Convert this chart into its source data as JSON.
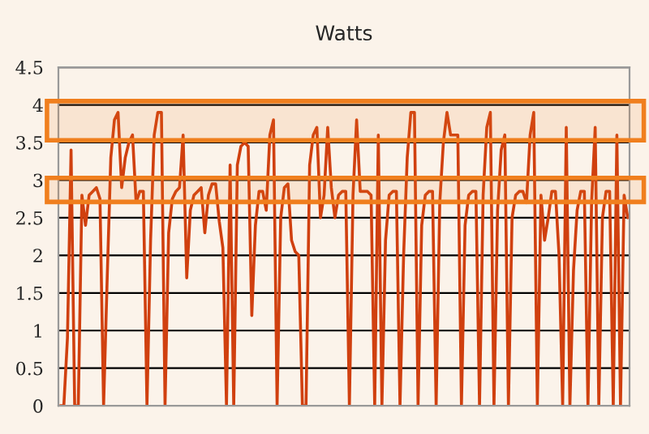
{
  "chart_data": {
    "type": "line",
    "title": "Watts",
    "categories": [
      null,
      null,
      null,
      null,
      null,
      null,
      null,
      null,
      null,
      null,
      null,
      null,
      null,
      null,
      null,
      null,
      null,
      null,
      null,
      null,
      null,
      null,
      null,
      null,
      null,
      null,
      null,
      null,
      null,
      null,
      null,
      null,
      null,
      null,
      null,
      null,
      null,
      null,
      null,
      null,
      null,
      null,
      null,
      null,
      null,
      null,
      null,
      null,
      null,
      null,
      null,
      null,
      null,
      null,
      null,
      null,
      null,
      null,
      null,
      null,
      null,
      null,
      null,
      null,
      null,
      null,
      null,
      null,
      null,
      null,
      null,
      null,
      null,
      null,
      null,
      null,
      null,
      null,
      null,
      null,
      null,
      null,
      null,
      null,
      null,
      null,
      null,
      null,
      null,
      null,
      null,
      null,
      null,
      null,
      null,
      null,
      null,
      null,
      null,
      null,
      null,
      null,
      null,
      null,
      null,
      null,
      null,
      null,
      null,
      null,
      null,
      null,
      null,
      null,
      null,
      null,
      null,
      null,
      null,
      null,
      null,
      null,
      null,
      null,
      null,
      null,
      null,
      null,
      null,
      null,
      null,
      null,
      null,
      null,
      null,
      null,
      null,
      null,
      null,
      null,
      null,
      null,
      null,
      null,
      null,
      null,
      null,
      null,
      null,
      null,
      null,
      null,
      null,
      null,
      null,
      null,
      null,
      null
    ],
    "series": [
      {
        "color": "#d0400f",
        "values": [
          0,
          0,
          0.9,
          3.4,
          0,
          0,
          2.8,
          2.4,
          2.8,
          2.85,
          2.9,
          2.75,
          0,
          1.7,
          3.3,
          3.8,
          3.9,
          2.9,
          3.3,
          3.5,
          3.6,
          2.7,
          2.85,
          2.85,
          0,
          2.2,
          3.6,
          3.9,
          3.9,
          0,
          2.3,
          2.75,
          2.85,
          2.9,
          3.6,
          1.7,
          2.6,
          2.8,
          2.85,
          2.9,
          2.3,
          2.8,
          2.95,
          2.95,
          2.45,
          2.1,
          0,
          3.2,
          0,
          3.2,
          3.45,
          3.5,
          3.45,
          1.2,
          2.4,
          2.85,
          2.85,
          2.6,
          3.6,
          3.8,
          0,
          2.5,
          2.9,
          2.95,
          2.2,
          2.05,
          2.0,
          0,
          0,
          3.2,
          3.6,
          3.7,
          2.5,
          2.8,
          3.7,
          2.9,
          2.5,
          2.8,
          2.85,
          2.85,
          0,
          2.8,
          3.8,
          2.85,
          2.85,
          2.85,
          2.8,
          0,
          3.6,
          0,
          2.2,
          2.8,
          2.85,
          2.85,
          0,
          2.0,
          3.3,
          3.9,
          3.9,
          0,
          2.4,
          2.8,
          2.85,
          2.85,
          0,
          2.7,
          3.5,
          3.9,
          3.6,
          3.6,
          3.6,
          0,
          2.4,
          2.8,
          2.85,
          2.85,
          0,
          2.8,
          3.7,
          3.9,
          0,
          2.6,
          3.4,
          3.6,
          0,
          2.5,
          2.8,
          2.85,
          2.85,
          2.7,
          3.6,
          3.9,
          0,
          2.8,
          2.2,
          2.5,
          2.85,
          2.85,
          2.0,
          0,
          3.7,
          0,
          1.8,
          2.6,
          2.85,
          2.85,
          0,
          2.7,
          3.7,
          0,
          2.5,
          2.85,
          2.85,
          0,
          3.6,
          0,
          2.8,
          2.5
        ]
      }
    ],
    "ylim": [
      0,
      4.5
    ],
    "yticks": [
      0,
      0.5,
      1,
      1.5,
      2,
      2.5,
      3,
      3.5,
      4,
      4.5
    ],
    "tick_labels": "y",
    "grid": "y",
    "bands": [
      {
        "axis": "y",
        "from": 3.53,
        "to": 4.05,
        "color": "#f07f1e"
      },
      {
        "axis": "y",
        "from": 2.71,
        "to": 3.03,
        "color": "#f07f1e"
      }
    ]
  }
}
